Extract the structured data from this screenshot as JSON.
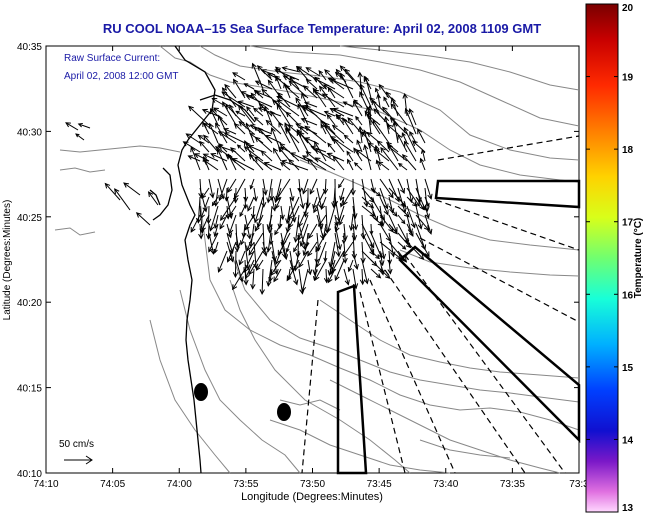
{
  "title": "RU COOL  NOAA–15  Sea Surface Temperature:  April 02, 2008 1109 GMT",
  "annotation": {
    "line1": "Raw Surface Current:",
    "line2": "April 02, 2008 12:00 GMT"
  },
  "scale_label": "50 cm/s",
  "axes": {
    "x_label": "Longitude (Degrees:Minutes)",
    "y_label": "Latitude (Degrees:Minutes)",
    "x_ticks": [
      "74:10",
      "74:05",
      "74:00",
      "73:55",
      "73:50",
      "73:45",
      "73:40",
      "73:35",
      "73:3"
    ],
    "y_ticks": [
      "40:35",
      "40:30",
      "40:25",
      "40:20",
      "40:15",
      "40:10"
    ]
  },
  "colorbar": {
    "label": "Temperature (°C)",
    "min": 13,
    "max": 20,
    "ticks": [
      "20",
      "19",
      "18",
      "17",
      "16",
      "15",
      "14",
      "13"
    ]
  },
  "colors": {
    "title": "#1a1aa6",
    "annotation": "#1a1aa6",
    "axis": "#000000",
    "contour": "#888888"
  }
}
